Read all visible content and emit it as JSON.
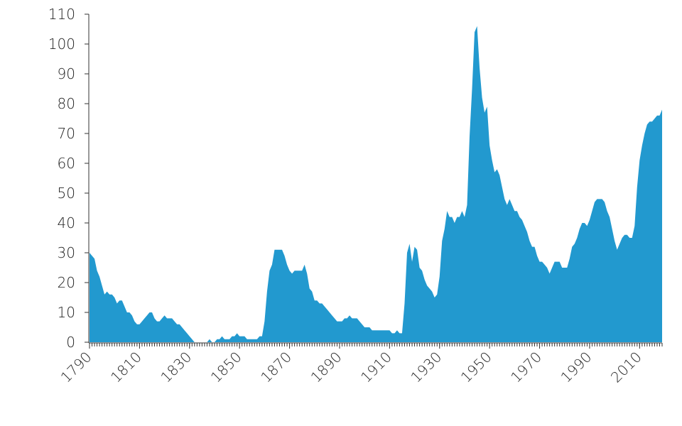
{
  "chart_data": {
    "type": "area",
    "color": "#2299cf",
    "x": [
      1790,
      1791,
      1792,
      1793,
      1794,
      1795,
      1796,
      1797,
      1798,
      1799,
      1800,
      1801,
      1802,
      1803,
      1804,
      1805,
      1806,
      1807,
      1808,
      1809,
      1810,
      1811,
      1812,
      1813,
      1814,
      1815,
      1816,
      1817,
      1818,
      1819,
      1820,
      1821,
      1822,
      1823,
      1824,
      1825,
      1826,
      1827,
      1828,
      1829,
      1830,
      1831,
      1832,
      1833,
      1834,
      1835,
      1836,
      1837,
      1838,
      1839,
      1840,
      1841,
      1842,
      1843,
      1844,
      1845,
      1846,
      1847,
      1848,
      1849,
      1850,
      1851,
      1852,
      1853,
      1854,
      1855,
      1856,
      1857,
      1858,
      1859,
      1860,
      1861,
      1862,
      1863,
      1864,
      1865,
      1866,
      1867,
      1868,
      1869,
      1870,
      1871,
      1872,
      1873,
      1874,
      1875,
      1876,
      1877,
      1878,
      1879,
      1880,
      1881,
      1882,
      1883,
      1884,
      1885,
      1886,
      1887,
      1888,
      1889,
      1890,
      1891,
      1892,
      1893,
      1894,
      1895,
      1896,
      1897,
      1898,
      1899,
      1900,
      1901,
      1902,
      1903,
      1904,
      1905,
      1906,
      1907,
      1908,
      1909,
      1910,
      1911,
      1912,
      1913,
      1914,
      1915,
      1916,
      1917,
      1918,
      1919,
      1920,
      1921,
      1922,
      1923,
      1924,
      1925,
      1926,
      1927,
      1928,
      1929,
      1930,
      1931,
      1932,
      1933,
      1934,
      1935,
      1936,
      1937,
      1938,
      1939,
      1940,
      1941,
      1942,
      1943,
      1944,
      1945,
      1946,
      1947,
      1948,
      1949,
      1950,
      1951,
      1952,
      1953,
      1954,
      1955,
      1956,
      1957,
      1958,
      1959,
      1960,
      1961,
      1962,
      1963,
      1964,
      1965,
      1966,
      1967,
      1968,
      1969,
      1970,
      1971,
      1972,
      1973,
      1974,
      1975,
      1976,
      1977,
      1978,
      1979,
      1980,
      1981,
      1982,
      1983,
      1984,
      1985,
      1986,
      1987,
      1988,
      1989,
      1990,
      1991,
      1992,
      1993,
      1994,
      1995,
      1996,
      1997,
      1998,
      1999,
      2000,
      2001,
      2002,
      2003,
      2004,
      2005,
      2006,
      2007,
      2008,
      2009,
      2010,
      2011,
      2012,
      2013,
      2014,
      2015,
      2016,
      2017,
      2018,
      2019
    ],
    "values": [
      30,
      29,
      28,
      24,
      22,
      19,
      16,
      17,
      16,
      16,
      15,
      13,
      14,
      14,
      12,
      10,
      10,
      9,
      7,
      6,
      6,
      7,
      8,
      9,
      10,
      10,
      8,
      7,
      7,
      8,
      9,
      8,
      8,
      8,
      7,
      6,
      6,
      5,
      4,
      3,
      2,
      1,
      0,
      0,
      0,
      0,
      0,
      0,
      1,
      0,
      0,
      1,
      1,
      2,
      1,
      1,
      1,
      2,
      2,
      3,
      2,
      2,
      2,
      1,
      1,
      1,
      1,
      1,
      2,
      2,
      7,
      17,
      24,
      26,
      31,
      31,
      31,
      31,
      29,
      26,
      24,
      23,
      24,
      24,
      24,
      24,
      26,
      23,
      18,
      17,
      14,
      14,
      13,
      13,
      12,
      11,
      10,
      9,
      8,
      7,
      7,
      7,
      8,
      8,
      9,
      8,
      8,
      8,
      7,
      6,
      5,
      5,
      5,
      4,
      4,
      4,
      4,
      4,
      4,
      4,
      4,
      3,
      3,
      4,
      3,
      3,
      13,
      30,
      33,
      27,
      32,
      31,
      25,
      24,
      21,
      19,
      18,
      17,
      15,
      16,
      22,
      34,
      38,
      44,
      42,
      42,
      40,
      42,
      42,
      44,
      42,
      46,
      69,
      85,
      104,
      106,
      92,
      82,
      77,
      79,
      66,
      61,
      57,
      58,
      56,
      52,
      48,
      46,
      48,
      46,
      44,
      44,
      42,
      41,
      39,
      37,
      34,
      32,
      32,
      29,
      27,
      27,
      26,
      25,
      23,
      25,
      27,
      27,
      27,
      25,
      25,
      25,
      28,
      32,
      33,
      35,
      38,
      40,
      40,
      39,
      41,
      44,
      47,
      48,
      48,
      48,
      47,
      44,
      42,
      38,
      34,
      31,
      33,
      35,
      36,
      36,
      35,
      35,
      39,
      52,
      61,
      66,
      70,
      73,
      74,
      74,
      75,
      76,
      76,
      78
    ],
    "xlim": [
      1790,
      2019
    ],
    "xticks": [
      1790,
      1810,
      1830,
      1850,
      1870,
      1890,
      1910,
      1930,
      1950,
      1970,
      1990,
      2010
    ],
    "ylim": [
      0,
      110
    ],
    "yticks": [
      0,
      10,
      20,
      30,
      40,
      50,
      60,
      70,
      80,
      90,
      100,
      110
    ]
  }
}
